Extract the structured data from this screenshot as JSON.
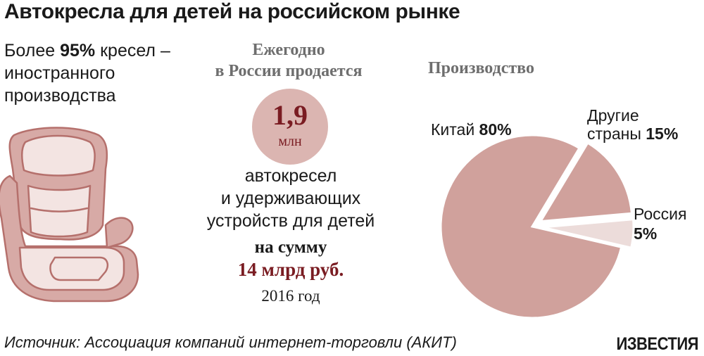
{
  "title": "Автокресла для детей на российском рынке",
  "left": {
    "line1_pre": "Более ",
    "line1_bold": "95%",
    "line1_post": " кресел –",
    "line2": "иностранного",
    "line3": "производства"
  },
  "middle": {
    "heading_line1": "Ежегодно",
    "heading_line2": "в России продается",
    "circle_value": "1,9",
    "circle_unit": "млн",
    "body_line1": "автокресел",
    "body_line2": "и удерживающих",
    "body_line3": "устройств для детей",
    "sum_label": "на сумму",
    "sum_value": "14 млрд руб.",
    "year": "2016 год"
  },
  "chart_data": {
    "type": "pie",
    "title": "Производство",
    "slices": [
      {
        "label_lines": [
          "Китай"
        ],
        "value_text": "80%",
        "value": 80,
        "color": "#d0a19c"
      },
      {
        "label_lines": [
          "Другие",
          "страны"
        ],
        "value_text": "15%",
        "value": 15,
        "color": "#d0a19c"
      },
      {
        "label_lines": [
          "Россия"
        ],
        "value_text": "5%",
        "value": 5,
        "color": "#ecdcda"
      }
    ]
  },
  "colors": {
    "accent": "#7a1c22",
    "pie_main": "#d0a19c",
    "pie_light": "#ecdcda",
    "circle": "#dbb5b1"
  },
  "footer": {
    "source": "Источник: Ассоциация компаний интернет-торговли (АКИТ)",
    "logo": "ИЗВЕСТИЯ"
  }
}
